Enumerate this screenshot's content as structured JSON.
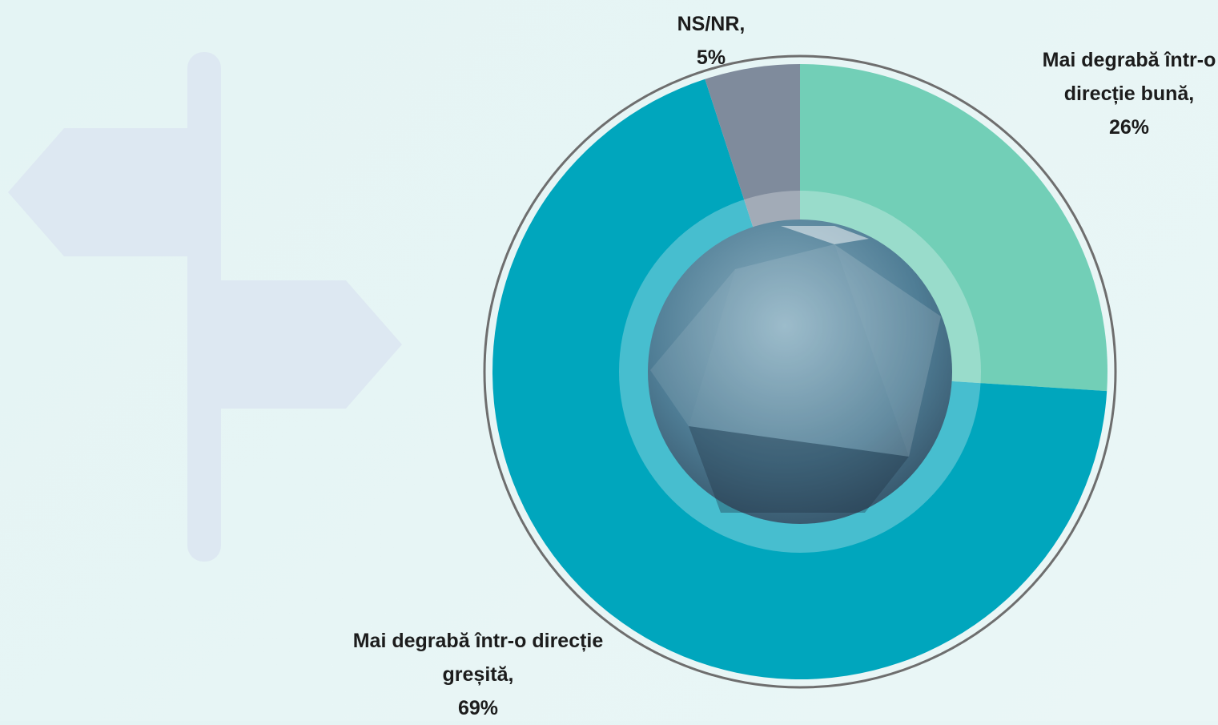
{
  "chart_data": {
    "type": "pie",
    "categories": [
      "Mai degrabă într-o direcție bună,",
      "Mai degrabă într-o direcție greșită,",
      "NS/NR,"
    ],
    "values": [
      26,
      69,
      5
    ],
    "value_labels": [
      "26%",
      "69%",
      "5%"
    ],
    "colors": [
      "#72cfb7",
      "#00a6bd",
      "#7f8b9c"
    ]
  }
}
